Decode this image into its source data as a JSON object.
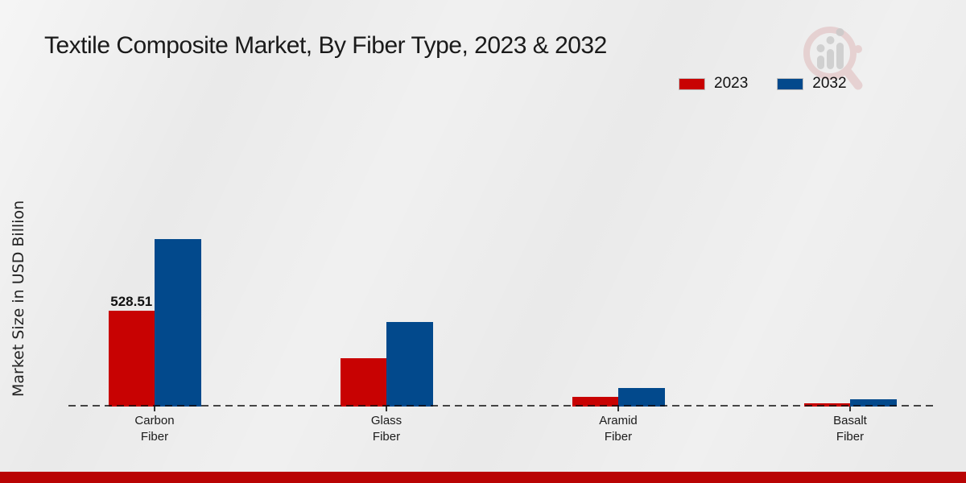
{
  "chart_data": {
    "type": "bar",
    "title": "Textile Composite Market, By Fiber Type, 2023 & 2032",
    "ylabel": "Market Size in USD Billion",
    "xlabel": "",
    "categories": [
      "Carbon\nFiber",
      "Glass\nFiber",
      "Aramid\nFiber",
      "Basalt\nFiber"
    ],
    "series": [
      {
        "name": "2023",
        "color": "#c80202",
        "values": [
          528.51,
          266,
          54,
          19
        ]
      },
      {
        "name": "2032",
        "color": "#02498c",
        "values": [
          925,
          466,
          103,
          42
        ]
      }
    ],
    "value_labels": [
      {
        "series_index": 0,
        "category_index": 0,
        "text": "528.51"
      }
    ],
    "ylim": [
      0,
      950
    ],
    "grid": false,
    "legend_position": "top-right",
    "notes": "Only the 528.51 data label is printed on the chart; other values estimated from bar heights. Dashed horizontal baseline at y=0."
  },
  "watermark": {
    "icon": "magnifier-bar-chart-logo"
  },
  "footer": {
    "accent_bar_color": "#b90404"
  }
}
